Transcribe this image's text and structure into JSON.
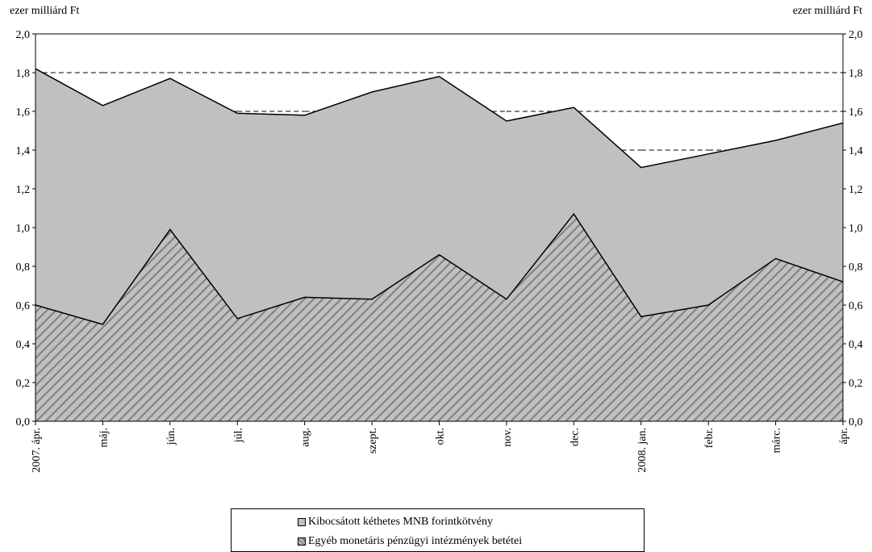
{
  "unit_left": "ezer milliárd Ft",
  "unit_right": "ezer milliárd Ft",
  "colors": {
    "total_fill": "#c0c0c0",
    "hatch_bg": "#c0c0c0",
    "hatch_line": "#808080",
    "line": "#000000"
  },
  "chart_data": {
    "type": "area",
    "categories": [
      "2007. ápr.",
      "máj.",
      "jún.",
      "júl.",
      "aug.",
      "szept.",
      "okt.",
      "nov.",
      "dec.",
      "2008. jan.",
      "febr.",
      "márc.",
      "ápr."
    ],
    "series": [
      {
        "name": "Egyéb monetáris pénzügyi intézmények betétei",
        "values": [
          0.6,
          0.5,
          0.99,
          0.53,
          0.64,
          0.63,
          0.86,
          0.63,
          1.07,
          0.54,
          0.6,
          0.84,
          0.72
        ],
        "pattern": "diagonal-hatch"
      },
      {
        "name": "Kibocsátott kéthetes MNB forintkötvény",
        "total_values": [
          1.82,
          1.63,
          1.77,
          1.59,
          1.58,
          1.7,
          1.78,
          1.55,
          1.62,
          1.31,
          1.38,
          1.45,
          1.54
        ],
        "pattern": "solid-gray"
      }
    ],
    "ylim": [
      0,
      2.0
    ],
    "yticks": [
      "0,0",
      "0,2",
      "0,4",
      "0,6",
      "0,8",
      "1,0",
      "1,2",
      "1,4",
      "1,6",
      "1,8",
      "2,0"
    ],
    "grid": "dashed horizontal at tick levels",
    "legend_position": "bottom-center",
    "legend_order": [
      "Kibocsátott kéthetes MNB forintkötvény",
      "Egyéb monetáris pénzügyi intézmények betétei"
    ]
  }
}
